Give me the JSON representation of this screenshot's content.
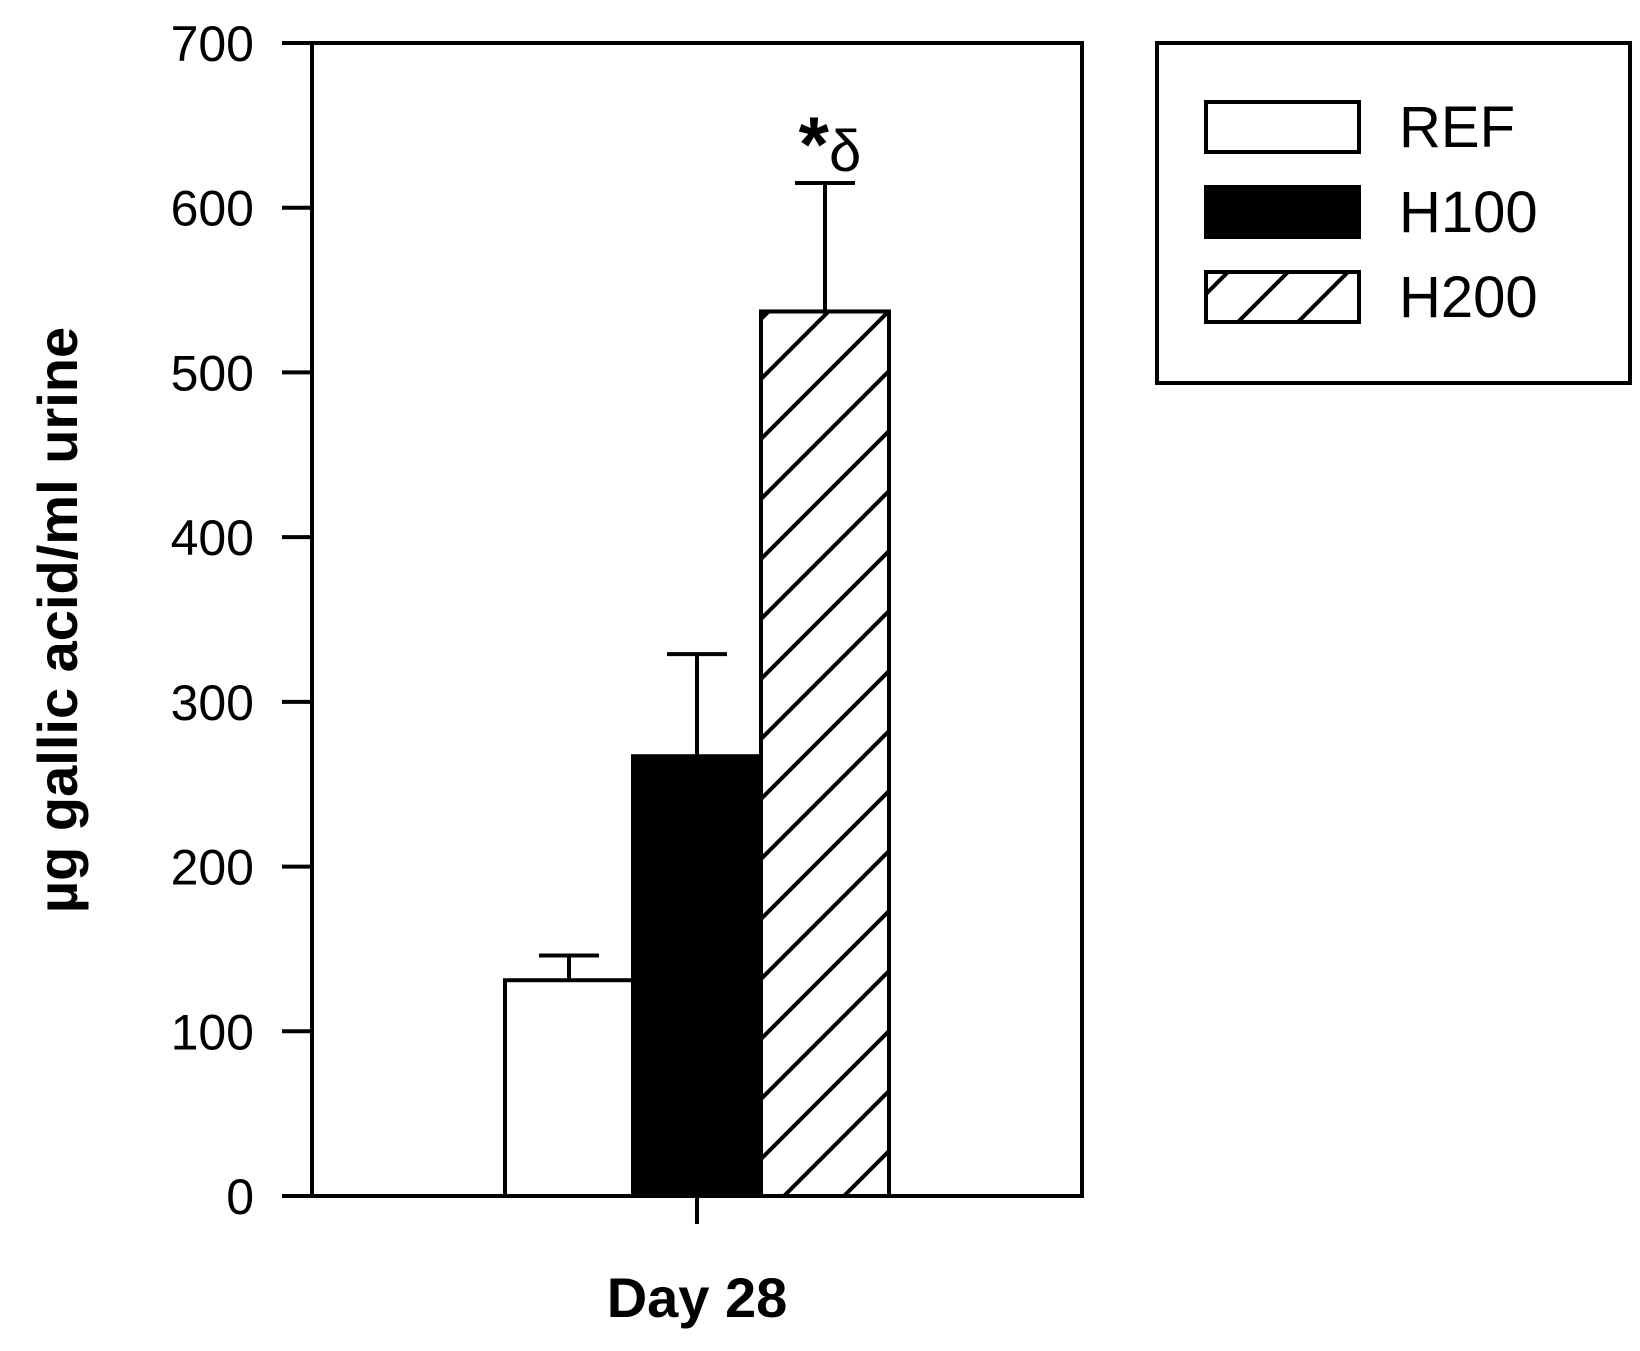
{
  "chart_data": {
    "type": "bar",
    "title": "",
    "xlabel": "Day 28",
    "ylabel": "µg gallic acid/ml urine",
    "categories": [
      "Day 28"
    ],
    "ylim": [
      0,
      700
    ],
    "yticks": [
      "0",
      "100",
      "200",
      "300",
      "400",
      "500",
      "600",
      "700"
    ],
    "grid": false,
    "legend_position": "top-right, outside plot",
    "series": [
      {
        "name": "REF",
        "values": [
          131
        ],
        "error": [
          15
        ],
        "fill": "white",
        "color": "#ffffff"
      },
      {
        "name": "H100",
        "values": [
          267
        ],
        "error": [
          62
        ],
        "fill": "solid",
        "color": "#000000"
      },
      {
        "name": "H200",
        "values": [
          537
        ],
        "error": [
          78
        ],
        "fill": "hatched",
        "color": "#ffffff",
        "annotation": "*δ"
      }
    ]
  }
}
